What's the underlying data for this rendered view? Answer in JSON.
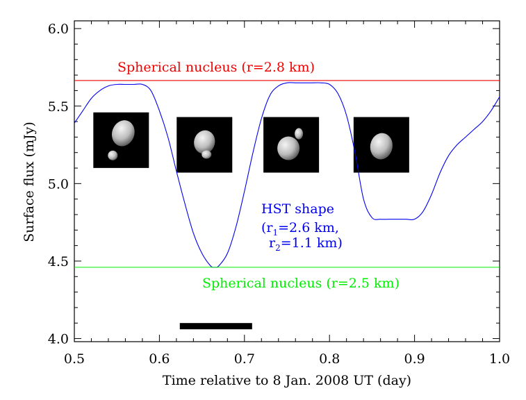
{
  "chart_data": {
    "type": "line",
    "title": "",
    "xlabel": "Time relative to 8 Jan. 2008 UT (day)",
    "ylabel": "Surface flux (mJy)",
    "xlim": [
      0.5,
      1.0
    ],
    "ylim": [
      3.98,
      6.05
    ],
    "x_ticks": [
      0.5,
      0.6,
      0.7,
      0.8,
      0.9,
      1.0
    ],
    "x_tick_labels": [
      "0.5",
      "0.6",
      "0.7",
      "0.8",
      "0.9",
      "1.0"
    ],
    "y_ticks": [
      4.0,
      4.5,
      5.0,
      5.5,
      6.0
    ],
    "y_tick_labels": [
      "4.0",
      "4.5",
      "5.0",
      "5.5",
      "6.0"
    ],
    "grid": false,
    "colors": {
      "hst": "#0000ee",
      "sphere_large": "#ee0000",
      "sphere_small": "#00ee00",
      "bar": "#000000"
    },
    "series": [
      {
        "name": "HST shape",
        "color": "#0000ee",
        "x": [
          0.5,
          0.51,
          0.52,
          0.53,
          0.54,
          0.55,
          0.56,
          0.57,
          0.58,
          0.59,
          0.6,
          0.61,
          0.62,
          0.63,
          0.64,
          0.65,
          0.66,
          0.665,
          0.67,
          0.68,
          0.69,
          0.7,
          0.71,
          0.72,
          0.73,
          0.74,
          0.75,
          0.76,
          0.77,
          0.78,
          0.79,
          0.8,
          0.81,
          0.82,
          0.83,
          0.84,
          0.85,
          0.86,
          0.87,
          0.88,
          0.89,
          0.9,
          0.91,
          0.92,
          0.93,
          0.94,
          0.95,
          0.96,
          0.97,
          0.98,
          0.99,
          1.0
        ],
        "y": [
          5.39,
          5.47,
          5.55,
          5.6,
          5.63,
          5.64,
          5.64,
          5.64,
          5.64,
          5.6,
          5.47,
          5.3,
          5.08,
          4.87,
          4.68,
          4.55,
          4.47,
          4.46,
          4.47,
          4.55,
          4.72,
          4.95,
          5.2,
          5.42,
          5.57,
          5.63,
          5.65,
          5.65,
          5.65,
          5.65,
          5.65,
          5.64,
          5.58,
          5.44,
          5.2,
          4.9,
          4.78,
          4.77,
          4.77,
          4.77,
          4.77,
          4.77,
          4.82,
          4.93,
          5.07,
          5.18,
          5.25,
          5.3,
          5.35,
          5.4,
          5.47,
          5.56
        ]
      },
      {
        "name": "Spherical nucleus (r=2.8 km)",
        "color": "#ee0000",
        "x": [
          0.5,
          1.0
        ],
        "y": [
          5.665,
          5.665
        ]
      },
      {
        "name": "Spherical nucleus (r=2.5 km)",
        "color": "#00ee00",
        "x": [
          0.5,
          1.0
        ],
        "y": [
          4.46,
          4.46
        ]
      }
    ],
    "observation_bar": {
      "x": [
        0.624,
        0.709
      ],
      "y": 4.08
    },
    "annotations": {
      "red_label": "Spherical nucleus (r=2.8 km)",
      "green_label": "Spherical nucleus (r=2.5 km)",
      "hst_line1": "HST shape",
      "hst_line2_prefix": "(r",
      "hst_line2_sub": "1",
      "hst_line2_suffix": "=2.6 km,",
      "hst_line3_prefix": "r",
      "hst_line3_sub": "2",
      "hst_line3_suffix": "=1.1 km)"
    },
    "shape_thumbnails": [
      {
        "name": "shape-view-1",
        "x_center": 0.555,
        "y_center": 5.28
      },
      {
        "name": "shape-view-2",
        "x_center": 0.653,
        "y_center": 5.25
      },
      {
        "name": "shape-view-3",
        "x_center": 0.755,
        "y_center": 5.25
      },
      {
        "name": "shape-view-4",
        "x_center": 0.861,
        "y_center": 5.25
      }
    ]
  }
}
